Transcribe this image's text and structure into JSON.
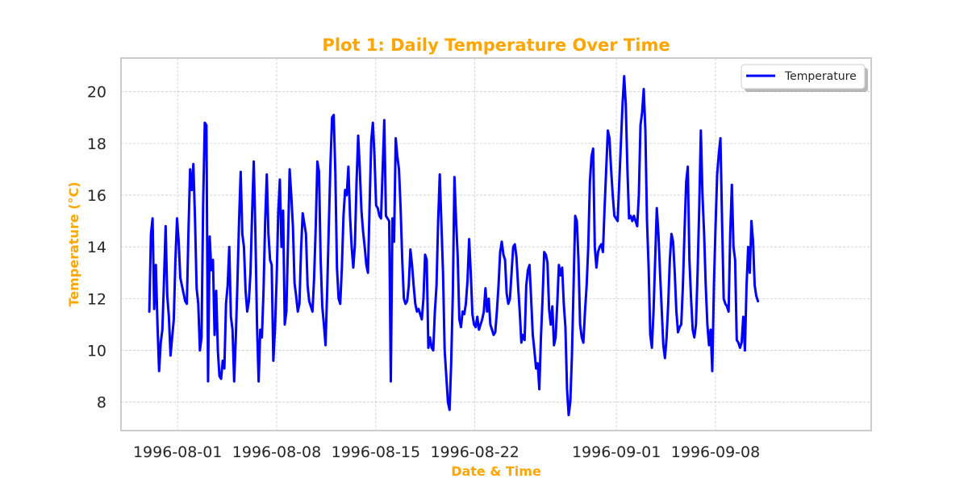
{
  "chart_data": {
    "type": "line",
    "title": "Plot 1: Daily Temperature Over Time",
    "xlabel": "Date & Time",
    "ylabel": "Temperature (°C)",
    "accent_color": "#FFA500",
    "x_ticks": [
      "1996-08-01",
      "1996-08-08",
      "1996-08-15",
      "1996-08-22",
      "1996-09-01",
      "1996-09-08"
    ],
    "y_ticks": [
      "8",
      "10",
      "12",
      "14",
      "16",
      "18",
      "20"
    ],
    "xlim": [
      "1996-07-28",
      "1996-09-19"
    ],
    "ylim": [
      6.9,
      21.3
    ],
    "grid": true,
    "legend_position": "top-right",
    "series": [
      {
        "name": "Temperature",
        "color": "#0000FF",
        "x_start": "1996-07-30",
        "x_end": "1996-09-11",
        "values": [
          11.5,
          14.5,
          15.1,
          11.6,
          13.3,
          11.0,
          9.2,
          10.3,
          10.8,
          12.7,
          14.8,
          12.1,
          11.3,
          9.8,
          10.5,
          11.2,
          13.5,
          15.1,
          14.2,
          12.8,
          12.5,
          12.2,
          11.9,
          11.8,
          14.6,
          17.0,
          16.2,
          17.2,
          15.1,
          12.4,
          11.8,
          10.0,
          10.5,
          15.7,
          18.8,
          18.7,
          8.8,
          14.4,
          13.1,
          13.5,
          10.6,
          12.3,
          10.0,
          9.0,
          8.9,
          9.6,
          9.3,
          11.8,
          12.5,
          14.0,
          11.3,
          10.8,
          8.8,
          10.5,
          12.6,
          15.0,
          16.9,
          14.5,
          14.0,
          12.3,
          11.5,
          11.9,
          13.0,
          15.3,
          17.3,
          14.6,
          11.0,
          8.8,
          10.8,
          10.5,
          12.3,
          15.0,
          16.8,
          14.5,
          13.5,
          13.3,
          9.6,
          10.8,
          12.7,
          15.3,
          16.6,
          14.0,
          15.4,
          11.0,
          11.5,
          14.2,
          17.0,
          16.0,
          14.8,
          12.6,
          12.1,
          11.5,
          11.8,
          13.9,
          15.3,
          14.9,
          14.5,
          12.5,
          11.9,
          11.7,
          11.5,
          12.8,
          14.8,
          17.3,
          16.9,
          13.5,
          11.7,
          11.0,
          10.2,
          12.3,
          14.8,
          17.2,
          19.0,
          19.1,
          16.9,
          13.2,
          12.0,
          11.8,
          13.2,
          15.2,
          16.2,
          16.0,
          17.1,
          15.2,
          14.0,
          13.2,
          14.1,
          16.5,
          18.3,
          17.0,
          15.4,
          14.6,
          14.0,
          13.3,
          13.0,
          15.6,
          18.1,
          18.8,
          17.5,
          15.6,
          15.5,
          15.2,
          15.1,
          17.0,
          18.9,
          15.2,
          15.1,
          15.0,
          8.8,
          15.1,
          14.2,
          18.2,
          17.5,
          17.0,
          15.5,
          13.5,
          12.0,
          11.8,
          11.9,
          12.5,
          13.9,
          13.3,
          12.5,
          11.8,
          11.5,
          11.6,
          11.4,
          11.2,
          12.0,
          13.7,
          13.5,
          10.1,
          10.5,
          10.1,
          10.0,
          11.5,
          12.5,
          15.0,
          16.8,
          14.9,
          13.0,
          10.0,
          9.0,
          8.0,
          7.7,
          9.5,
          12.2,
          16.7,
          15.0,
          13.6,
          11.2,
          10.9,
          11.5,
          11.4,
          11.8,
          12.7,
          14.3,
          13.0,
          11.4,
          11.0,
          10.9,
          11.3,
          10.8,
          11.0,
          11.2,
          11.5,
          12.4,
          11.5,
          12.0,
          11.0,
          10.8,
          10.6,
          10.7,
          11.5,
          12.5,
          13.8,
          14.2,
          13.7,
          13.5,
          12.2,
          11.8,
          12.0,
          13.0,
          14.0,
          14.1,
          13.6,
          12.5,
          11.5,
          10.3,
          10.6,
          10.4,
          12.5,
          13.1,
          13.3,
          12.0,
          10.6,
          10.0,
          9.3,
          9.5,
          8.5,
          10.5,
          12.0,
          13.8,
          13.7,
          13.4,
          11.6,
          11.0,
          11.7,
          10.2,
          10.5,
          11.8,
          13.3,
          12.9,
          13.2,
          11.8,
          10.9,
          8.5,
          7.5,
          8.0,
          9.8,
          12.5,
          15.2,
          15.0,
          13.5,
          11.0,
          10.5,
          10.3,
          11.5,
          12.5,
          14.0,
          16.5,
          17.5,
          17.8,
          14.0,
          13.2,
          13.8,
          14.0,
          14.1,
          13.8,
          15.5,
          17.0,
          18.5,
          18.2,
          17.0,
          16.0,
          15.2,
          15.1,
          15.0,
          16.5,
          18.0,
          19.5,
          20.6,
          19.5,
          17.0,
          15.1,
          15.2,
          15.0,
          15.2,
          15.0,
          14.8,
          16.0,
          18.7,
          19.2,
          20.1,
          18.5,
          15.0,
          13.2,
          10.6,
          10.1,
          11.5,
          13.5,
          15.5,
          14.5,
          13.0,
          11.6,
          10.2,
          9.7,
          10.5,
          11.8,
          13.5,
          14.5,
          14.2,
          13.0,
          11.5,
          10.7,
          10.9,
          11.0,
          12.5,
          14.6,
          16.5,
          17.1,
          13.5,
          12.0,
          10.8,
          10.5,
          11.0,
          13.0,
          15.5,
          18.5,
          16.0,
          14.5,
          12.5,
          11.0,
          10.2,
          10.8,
          9.2,
          12.5,
          14.8,
          16.8,
          17.6,
          18.2,
          15.0,
          12.0,
          11.8,
          11.7,
          11.5,
          14.5,
          16.4,
          14.0,
          13.5,
          10.4,
          10.3,
          10.1,
          10.3,
          11.3,
          10.0,
          12.5,
          14.0,
          13.0,
          15.0,
          14.2,
          12.5,
          12.1,
          11.9
        ]
      }
    ]
  }
}
